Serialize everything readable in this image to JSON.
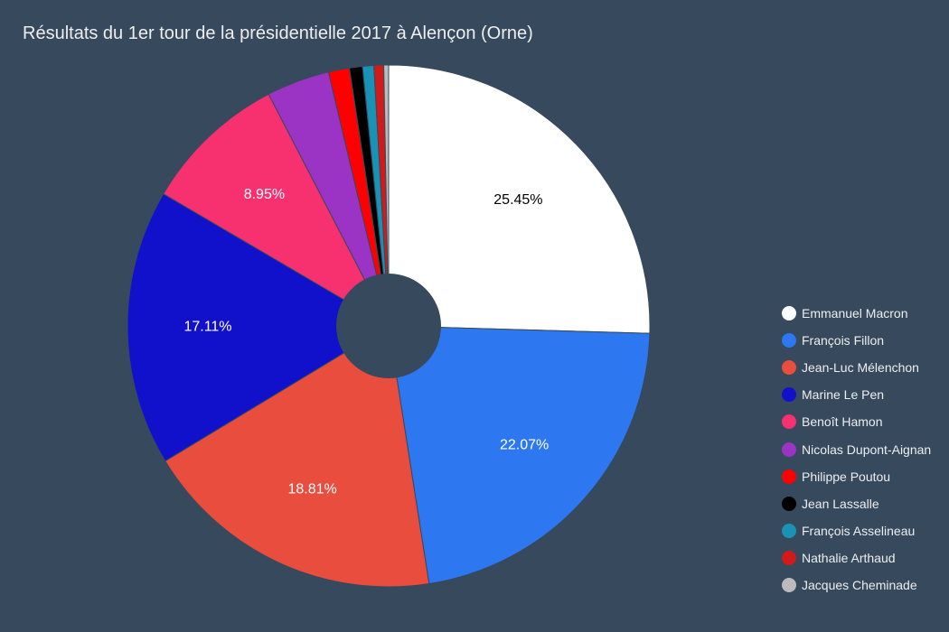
{
  "chart_data": {
    "type": "pie",
    "title": "Résultats du 1er tour de la présidentielle 2017 à Alençon (Orne)",
    "hole": true,
    "legend_position": "right",
    "series": [
      {
        "name": "Emmanuel Macron",
        "value": 25.45,
        "label": "25.45%",
        "color": "#ffffff",
        "label_color": "#000000"
      },
      {
        "name": "François Fillon",
        "value": 22.07,
        "label": "22.07%",
        "color": "#2d78f0",
        "label_color": "#ffffff"
      },
      {
        "name": "Jean-Luc Mélenchon",
        "value": 18.81,
        "label": "18.81%",
        "color": "#e94d3d",
        "label_color": "#ffffff"
      },
      {
        "name": "Marine Le Pen",
        "value": 17.11,
        "label": "17.11%",
        "color": "#1111cc",
        "label_color": "#ffffff"
      },
      {
        "name": "Benoît Hamon",
        "value": 8.95,
        "label": "8.95%",
        "color": "#f73070",
        "label_color": "#ffffff"
      },
      {
        "name": "Nicolas Dupont-Aignan",
        "value": 3.9,
        "label": "",
        "color": "#9b34c4",
        "label_color": "#ffffff"
      },
      {
        "name": "Philippe Poutou",
        "value": 1.3,
        "label": "",
        "color": "#ff0000",
        "label_color": "#ffffff"
      },
      {
        "name": "Jean Lassalle",
        "value": 0.8,
        "label": "",
        "color": "#000000",
        "label_color": "#ffffff"
      },
      {
        "name": "François Asselineau",
        "value": 0.7,
        "label": "",
        "color": "#1a92b5",
        "label_color": "#ffffff"
      },
      {
        "name": "Nathalie Arthaud",
        "value": 0.6,
        "label": "",
        "color": "#d11a1a",
        "label_color": "#ffffff"
      },
      {
        "name": "Jacques Cheminade",
        "value": 0.3,
        "label": "",
        "color": "#bbbbbb",
        "label_color": "#ffffff"
      }
    ]
  }
}
